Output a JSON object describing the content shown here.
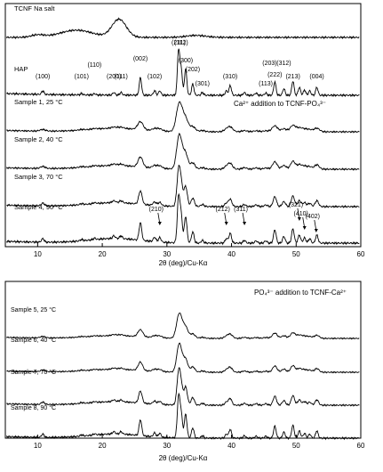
{
  "chart_data": [
    {
      "type": "line",
      "title": "",
      "xlabel": "2θ (deg)/Cu-Kα",
      "ylabel": "",
      "xlim": [
        5,
        60
      ],
      "x_ticks": [
        10,
        20,
        30,
        40,
        50,
        60
      ],
      "grid": false,
      "annotation": "Ca²⁺ addition to TCNF-PO₄³⁻",
      "series": [
        {
          "name": "TCNF Na salt",
          "kind": "cellulose"
        },
        {
          "name": "HAP",
          "kind": "hap_ref"
        },
        {
          "name": "Sample 1, 25 °C",
          "kind": "sample",
          "crystallinity": 0.45
        },
        {
          "name": "Sample 2, 40 °C",
          "kind": "sample",
          "crystallinity": 0.6
        },
        {
          "name": "Sample 3, 70 °C",
          "kind": "sample",
          "crystallinity": 0.85
        },
        {
          "name": "Sample 4, 90 °C",
          "kind": "sample",
          "crystallinity": 1.0
        }
      ],
      "hap_labels": [
        {
          "hkl": "(100)",
          "x": 10.8
        },
        {
          "hkl": "(101)",
          "x": 16.8
        },
        {
          "hkl": "(110)",
          "x": 18.8
        },
        {
          "hkl": "(200)",
          "x": 21.8
        },
        {
          "hkl": "(111)",
          "x": 22.9
        },
        {
          "hkl": "(002)",
          "x": 25.9
        },
        {
          "hkl": "(102)",
          "x": 28.1
        },
        {
          "hkl": "(211)",
          "x": 31.8
        },
        {
          "hkl": "(112)",
          "x": 32.2
        },
        {
          "hkl": "(300)",
          "x": 32.9
        },
        {
          "hkl": "(202)",
          "x": 34.0
        },
        {
          "hkl": "(301)",
          "x": 35.5
        },
        {
          "hkl": "(310)",
          "x": 39.8
        },
        {
          "hkl": "(113)",
          "x": 45.3
        },
        {
          "hkl": "(203)",
          "x": 45.9
        },
        {
          "hkl": "(222)",
          "x": 46.7
        },
        {
          "hkl": "(312)",
          "x": 48.1
        },
        {
          "hkl": "(213)",
          "x": 49.5
        },
        {
          "hkl": "(004)",
          "x": 53.2
        }
      ],
      "sample4_labels": [
        {
          "hkl": "(210)",
          "x": 28.9
        },
        {
          "hkl": "(212)",
          "x": 39.2
        },
        {
          "hkl": "(311)",
          "x": 42.0
        },
        {
          "hkl": "(321)",
          "x": 50.5
        },
        {
          "hkl": "(410)",
          "x": 51.3
        },
        {
          "hkl": "(402)",
          "x": 53.1
        }
      ]
    },
    {
      "type": "line",
      "title": "",
      "xlabel": "2θ (deg)/Cu-Kα",
      "ylabel": "",
      "xlim": [
        5,
        60
      ],
      "x_ticks": [
        10,
        20,
        30,
        40,
        50,
        60
      ],
      "grid": false,
      "annotation": "PO₄³⁻ addition to TCNF-Ca²⁺",
      "series": [
        {
          "name": "Sample 5, 25 °C",
          "kind": "sample",
          "crystallinity": 0.55
        },
        {
          "name": "Sample 6, 40 °C",
          "kind": "sample",
          "crystallinity": 0.65
        },
        {
          "name": "Sample 7, 70 °C",
          "kind": "sample",
          "crystallinity": 0.85
        },
        {
          "name": "Sample 8, 90 °C",
          "kind": "sample",
          "crystallinity": 1.0
        }
      ]
    }
  ]
}
